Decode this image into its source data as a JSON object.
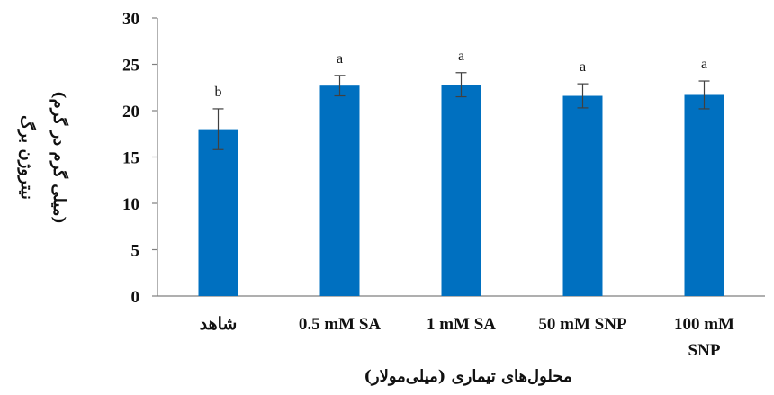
{
  "chart_data": {
    "type": "bar",
    "title": "",
    "xlabel": "محلول‌های تیماری (میلی‌مولار)",
    "ylabel": [
      "نیتروژن برگ",
      "(میلی گرم در گرم)"
    ],
    "ylim": [
      0,
      30
    ],
    "yticks": [
      0,
      5,
      10,
      15,
      20,
      25,
      30
    ],
    "categories": [
      [
        "شاهد"
      ],
      [
        "0.5 mM SA"
      ],
      [
        "1 mM SA"
      ],
      [
        "50 mM SNP"
      ],
      [
        "100 mM",
        "SNP"
      ]
    ],
    "values": [
      18.0,
      22.7,
      22.8,
      21.6,
      21.7
    ],
    "errors": [
      2.2,
      1.1,
      1.3,
      1.3,
      1.5
    ],
    "significance": [
      "b",
      "a",
      "a",
      "a",
      "a"
    ],
    "grid": false,
    "legend": "none",
    "bar_color": "#0070c0"
  }
}
